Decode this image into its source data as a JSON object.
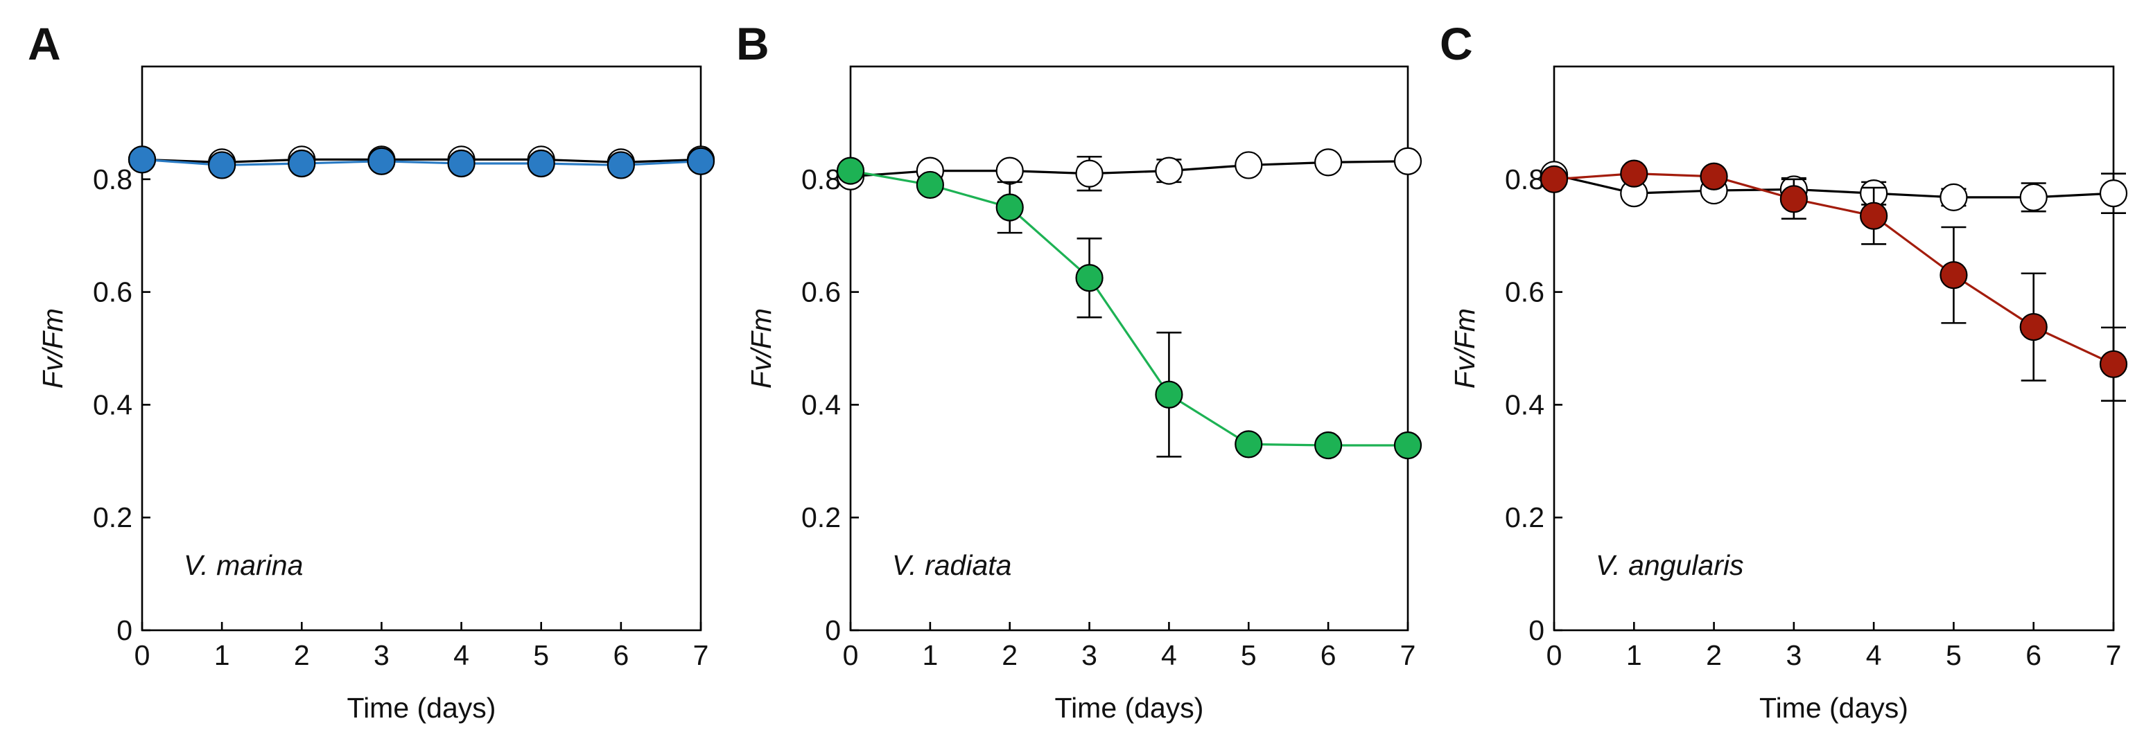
{
  "chart_data": [
    {
      "type": "scatter",
      "panel": "A",
      "xlabel": "Time (days)",
      "ylabel": "Fv/Fm",
      "annotation": "V. marina",
      "xlim": [
        0,
        7
      ],
      "ylim": [
        0,
        1.0
      ],
      "xticks": [
        0,
        1,
        2,
        3,
        4,
        5,
        6,
        7
      ],
      "yticks": [
        0,
        0.2,
        0.4,
        0.6,
        0.8
      ],
      "series": [
        {
          "fill": "#ffffff",
          "line": "#000000",
          "x": [
            0,
            1,
            2,
            3,
            4,
            5,
            6,
            7
          ],
          "y": [
            0.835,
            0.83,
            0.835,
            0.835,
            0.835,
            0.835,
            0.83,
            0.835
          ],
          "err": [
            0,
            0,
            0,
            0,
            0,
            0,
            0,
            0
          ]
        },
        {
          "fill": "#2a7bc4",
          "line": "#2a7bc4",
          "x": [
            0,
            1,
            2,
            3,
            4,
            5,
            6,
            7
          ],
          "y": [
            0.835,
            0.825,
            0.828,
            0.832,
            0.828,
            0.828,
            0.825,
            0.832
          ],
          "err": [
            0,
            0,
            0,
            0,
            0,
            0,
            0,
            0
          ]
        }
      ]
    },
    {
      "type": "scatter",
      "panel": "B",
      "xlabel": "Time (days)",
      "ylabel": "Fv/Fm",
      "annotation": "V. radiata",
      "xlim": [
        0,
        7
      ],
      "ylim": [
        0,
        1.0
      ],
      "xticks": [
        0,
        1,
        2,
        3,
        4,
        5,
        6,
        7
      ],
      "yticks": [
        0,
        0.2,
        0.4,
        0.6,
        0.8
      ],
      "series": [
        {
          "fill": "#ffffff",
          "line": "#000000",
          "x": [
            0,
            1,
            2,
            3,
            4,
            5,
            6,
            7
          ],
          "y": [
            0.805,
            0.815,
            0.815,
            0.81,
            0.815,
            0.825,
            0.83,
            0.832
          ],
          "err": [
            0,
            0,
            0,
            0.03,
            0.02,
            0,
            0,
            0
          ]
        },
        {
          "fill": "#1db254",
          "line": "#1db254",
          "x": [
            0,
            1,
            2,
            3,
            4,
            5,
            6,
            7
          ],
          "y": [
            0.815,
            0.79,
            0.75,
            0.625,
            0.418,
            0.33,
            0.328,
            0.328
          ],
          "err": [
            0,
            0,
            0.045,
            0.07,
            0.11,
            0.01,
            0.01,
            0
          ]
        }
      ]
    },
    {
      "type": "scatter",
      "panel": "C",
      "xlabel": "Time (days)",
      "ylabel": "Fv/Fm",
      "annotation": "V. angularis",
      "xlim": [
        0,
        7
      ],
      "ylim": [
        0,
        1.0
      ],
      "xticks": [
        0,
        1,
        2,
        3,
        4,
        5,
        6,
        7
      ],
      "yticks": [
        0,
        0.2,
        0.4,
        0.6,
        0.8
      ],
      "series": [
        {
          "fill": "#ffffff",
          "line": "#000000",
          "x": [
            0,
            1,
            2,
            3,
            4,
            5,
            6,
            7
          ],
          "y": [
            0.808,
            0.775,
            0.78,
            0.782,
            0.775,
            0.768,
            0.768,
            0.775
          ],
          "err": [
            0,
            0,
            0,
            0.02,
            0.02,
            0.015,
            0.025,
            0.035
          ]
        },
        {
          "fill": "#a31c0c",
          "line": "#a31c0c",
          "x": [
            0,
            1,
            2,
            3,
            4,
            5,
            6,
            7
          ],
          "y": [
            0.8,
            0.81,
            0.805,
            0.765,
            0.735,
            0.63,
            0.538,
            0.472
          ],
          "err": [
            0,
            0,
            0,
            0.035,
            0.05,
            0.085,
            0.095,
            0.065
          ]
        }
      ]
    }
  ]
}
